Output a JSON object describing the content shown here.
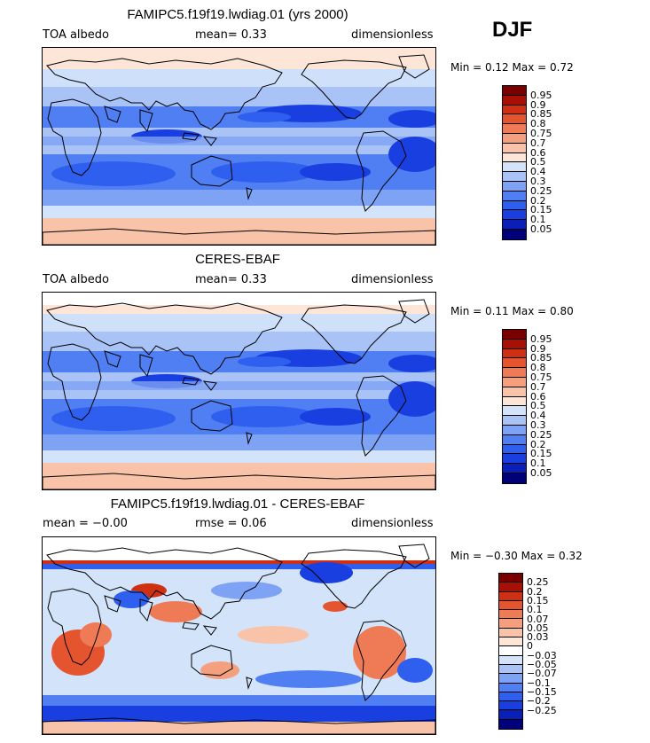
{
  "season": "DJF",
  "panels": [
    {
      "title": "FAMIPC5.f19f19.lwdiag.01 (yrs 2000)",
      "left_label": "TOA albedo",
      "center_label": "mean=   0.33",
      "right_label": "dimensionless",
      "minmax": "Min =   0.12  Max =   0.72",
      "palette": [
        "#00007a",
        "#0a1fb8",
        "#1a3fe0",
        "#2f5fee",
        "#4f7ff2",
        "#7ea2f4",
        "#a9c3f7",
        "#d3e3fa",
        "#fde5d8",
        "#f8c3a8",
        "#f4a07e",
        "#ee7b55",
        "#e4552f",
        "#cf2f12",
        "#a80f05",
        "#7a0000"
      ],
      "levels": [
        "0.95",
        "0.9",
        "0.85",
        "0.8",
        "0.75",
        "0.7",
        "0.6",
        "0.5",
        "0.4",
        "0.3",
        "0.25",
        "0.2",
        "0.15",
        "0.1",
        "0.05"
      ],
      "kind": "abs"
    },
    {
      "title": "CERES-EBAF",
      "left_label": "TOA albedo",
      "center_label": "mean=   0.33",
      "right_label": "dimensionless",
      "minmax": "Min =   0.11  Max =   0.80",
      "palette": [
        "#00007a",
        "#0a1fb8",
        "#1a3fe0",
        "#2f5fee",
        "#4f7ff2",
        "#7ea2f4",
        "#a9c3f7",
        "#d3e3fa",
        "#fde5d8",
        "#f8c3a8",
        "#f4a07e",
        "#ee7b55",
        "#e4552f",
        "#cf2f12",
        "#a80f05",
        "#7a0000"
      ],
      "levels": [
        "0.95",
        "0.9",
        "0.85",
        "0.8",
        "0.75",
        "0.7",
        "0.6",
        "0.5",
        "0.4",
        "0.3",
        "0.25",
        "0.2",
        "0.15",
        "0.1",
        "0.05"
      ],
      "kind": "abs"
    },
    {
      "title": "FAMIPC5.f19f19.lwdiag.01 - CERES-EBAF",
      "left_label": "mean =  −0.00",
      "center_label": "rmse =   0.06",
      "right_label": "dimensionless",
      "minmax": "Min =  −0.30  Max =   0.32",
      "palette": [
        "#00007a",
        "#0a1fb8",
        "#1a3fe0",
        "#2f5fee",
        "#4f7ff2",
        "#7ea2f4",
        "#a9c3f7",
        "#d3e3fa",
        "#ffffff",
        "#fde5d8",
        "#f8c3a8",
        "#f4a07e",
        "#ee7b55",
        "#e4552f",
        "#cf2f12",
        "#a80f05",
        "#7a0000"
      ],
      "levels": [
        "0.25",
        "0.2",
        "0.15",
        "0.1",
        "0.07",
        "0.05",
        "0.03",
        "0",
        "−0.03",
        "−0.05",
        "−0.07",
        "−0.1",
        "−0.15",
        "−0.2",
        "−0.25"
      ],
      "kind": "diff"
    }
  ]
}
